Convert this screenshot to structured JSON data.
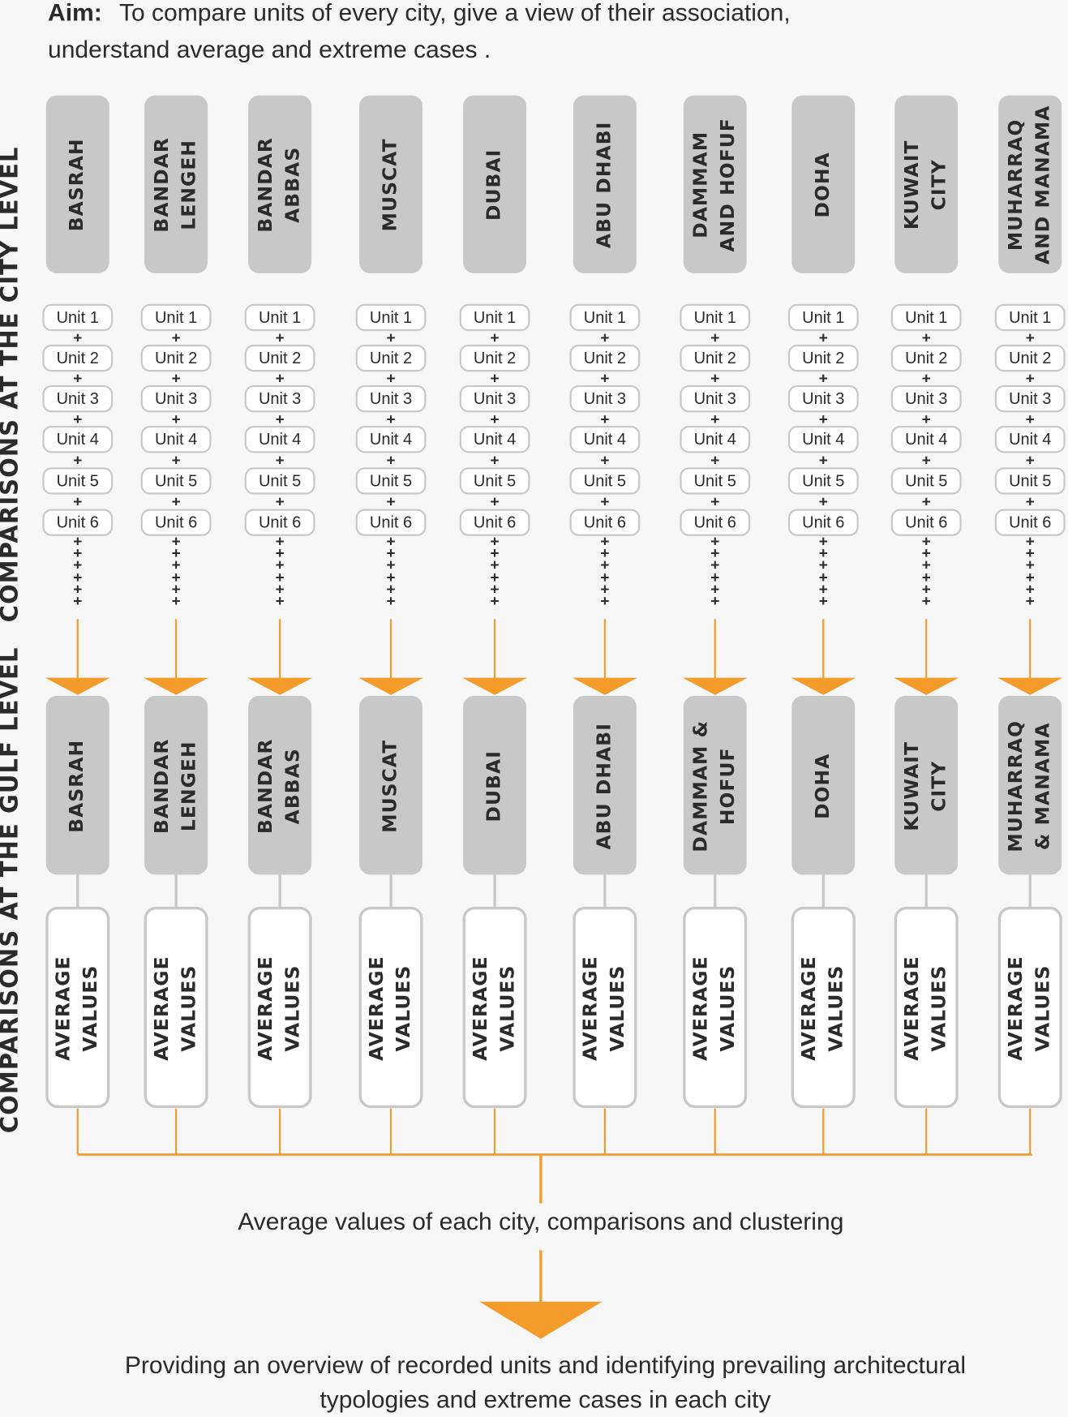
{
  "aim": {
    "label": "Aim:",
    "lines": [
      "To compare units of every city, give a view of their association,",
      "understand average and extreme cases ."
    ]
  },
  "side_labels": {
    "city_level": "COMPARISONS AT THE CITY LEVEL",
    "gulf_level": "COMPARISONS AT THE GULF LEVEL"
  },
  "average_label": [
    "AVERAGE",
    "VALUES"
  ],
  "cities": [
    {
      "top": [
        "BASRAH"
      ],
      "bottom": [
        "BASRAH"
      ],
      "units": [
        "Unit 1",
        "Unit 2",
        "Unit 3",
        "Unit 4",
        "Unit 5",
        "Unit 6"
      ]
    },
    {
      "top": [
        "BANDAR",
        "LENGEH"
      ],
      "bottom": [
        "BANDAR",
        "LENGEH"
      ],
      "units": [
        "Unit 1",
        "Unit 2",
        "Unit 3",
        "Unit 4",
        "Unit 5",
        "Unit 6"
      ]
    },
    {
      "top": [
        "BANDAR",
        "ABBAS"
      ],
      "bottom": [
        "BANDAR",
        "ABBAS"
      ],
      "units": [
        "Unit 1",
        "Unit 2",
        "Unit 3",
        "Unit 4",
        "Unit 5",
        "Unit 6"
      ]
    },
    {
      "top": [
        "MUSCAT"
      ],
      "bottom": [
        "MUSCAT"
      ],
      "units": [
        "Unit 1",
        "Unit 2",
        "Unit 3",
        "Unit 4",
        "Unit 5",
        "Unit 6"
      ]
    },
    {
      "top": [
        "DUBAI"
      ],
      "bottom": [
        "DUBAI"
      ],
      "units": [
        "Unit 1",
        "Unit 2",
        "Unit 3",
        "Unit 4",
        "Unit 5",
        "Unit 6"
      ]
    },
    {
      "top": [
        "ABU DHABI"
      ],
      "bottom": [
        "ABU DHABI"
      ],
      "units": [
        "Unit 1",
        "Unit 2",
        "Unit 3",
        "Unit 4",
        "Unit 5",
        "Unit 6"
      ]
    },
    {
      "top": [
        "DAMMAM",
        "AND HOFUF"
      ],
      "bottom": [
        "DAMMAM &",
        "HOFUF"
      ],
      "units": [
        "Unit 1",
        "Unit 2",
        "Unit 3",
        "Unit 4",
        "Unit 5",
        "Unit 6"
      ]
    },
    {
      "top": [
        "DOHA"
      ],
      "bottom": [
        "DOHA"
      ],
      "units": [
        "Unit 1",
        "Unit 2",
        "Unit 3",
        "Unit 4",
        "Unit 5",
        "Unit 6"
      ]
    },
    {
      "top": [
        "KUWAIT",
        "CITY"
      ],
      "bottom": [
        "KUWAIT",
        "CITY"
      ],
      "units": [
        "Unit 1",
        "Unit 2",
        "Unit 3",
        "Unit 4",
        "Unit 5",
        "Unit 6"
      ]
    },
    {
      "top": [
        "MUHARRAQ",
        "AND MANAMA"
      ],
      "bottom": [
        "MUHARRAQ",
        "& MANAMA"
      ],
      "units": [
        "Unit 1",
        "Unit 2",
        "Unit 3",
        "Unit 4",
        "Unit 5",
        "Unit 6"
      ]
    }
  ],
  "middle_text": "Average values of each city, comparisons and clustering",
  "result_lines": [
    "Providing an overview of recorded units and identifying prevailing architectural",
    "typologies and extreme cases in each city"
  ]
}
